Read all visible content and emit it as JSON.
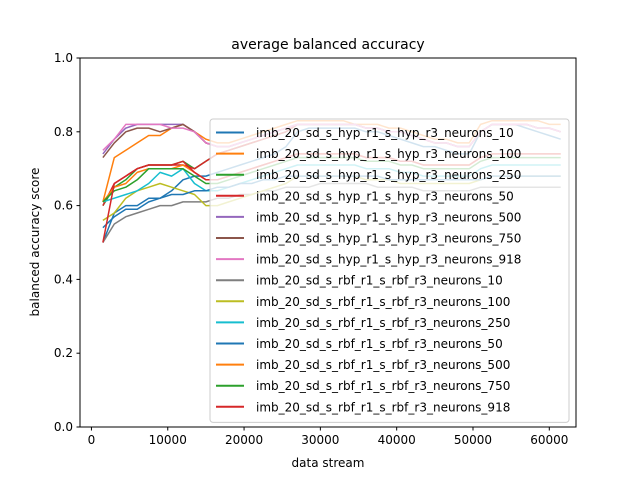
{
  "chart_data": {
    "type": "line",
    "title": "average balanced accuracy",
    "xlabel": "data stream",
    "ylabel": "balanced accuracy score",
    "xlim": [
      -1500,
      63500
    ],
    "ylim": [
      0.0,
      1.0
    ],
    "xticks": [
      0,
      10000,
      20000,
      30000,
      40000,
      50000,
      60000
    ],
    "yticks": [
      0.0,
      0.2,
      0.4,
      0.6,
      0.8,
      1.0
    ],
    "xtick_labels": [
      "0",
      "10000",
      "20000",
      "30000",
      "40000",
      "50000",
      "60000"
    ],
    "ytick_labels": [
      "0.0",
      "0.2",
      "0.4",
      "0.6",
      "0.8",
      "1.0"
    ],
    "grid": false,
    "legend_position": "center-right",
    "x": [
      1500,
      3000,
      4500,
      6000,
      7500,
      9000,
      10500,
      12000,
      13500,
      15000,
      16500,
      18000,
      19500,
      21000,
      22500,
      24000,
      25500,
      27000,
      28500,
      30000,
      31500,
      33000,
      34500,
      36000,
      37500,
      39000,
      40500,
      42000,
      43500,
      45000,
      46500,
      48000,
      49500,
      51000,
      52500,
      54000,
      55500,
      57000,
      58500,
      60000,
      61500
    ],
    "series": [
      {
        "name": "imb_20_sd_s_hyp_r1_s_hyp_r3_neurons_10",
        "color": "#1f77b4",
        "values": [
          0.5,
          0.58,
          0.6,
          0.6,
          0.62,
          0.62,
          0.64,
          0.67,
          0.68,
          0.68,
          0.69,
          0.7,
          0.71,
          0.72,
          0.73,
          0.74,
          0.76,
          0.8,
          0.81,
          0.81,
          0.81,
          0.81,
          0.81,
          0.8,
          0.8,
          0.79,
          0.78,
          0.77,
          0.76,
          0.76,
          0.75,
          0.74,
          0.74,
          0.8,
          0.82,
          0.82,
          0.82,
          0.81,
          0.8,
          0.79,
          0.78
        ]
      },
      {
        "name": "imb_20_sd_s_hyp_r1_s_hyp_r3_neurons_100",
        "color": "#ff7f0e",
        "values": [
          0.61,
          0.73,
          0.75,
          0.77,
          0.79,
          0.79,
          0.81,
          0.82,
          0.8,
          0.78,
          0.77,
          0.77,
          0.78,
          0.79,
          0.8,
          0.81,
          0.82,
          0.83,
          0.83,
          0.83,
          0.83,
          0.83,
          0.82,
          0.82,
          0.82,
          0.81,
          0.81,
          0.8,
          0.79,
          0.78,
          0.78,
          0.77,
          0.77,
          0.82,
          0.83,
          0.83,
          0.83,
          0.83,
          0.83,
          0.82,
          0.82
        ]
      },
      {
        "name": "imb_20_sd_s_hyp_r1_s_hyp_r3_neurons_250",
        "color": "#2ca02c",
        "values": [
          0.6,
          0.65,
          0.67,
          0.7,
          0.71,
          0.71,
          0.71,
          0.72,
          0.7,
          0.72,
          0.74,
          0.75,
          0.76,
          0.77,
          0.78,
          0.79,
          0.8,
          0.82,
          0.82,
          0.82,
          0.82,
          0.82,
          0.82,
          0.81,
          0.81,
          0.8,
          0.8,
          0.79,
          0.78,
          0.77,
          0.77,
          0.76,
          0.76,
          0.8,
          0.82,
          0.82,
          0.82,
          0.82,
          0.81,
          0.81,
          0.8
        ]
      },
      {
        "name": "imb_20_sd_s_hyp_r1_s_hyp_r3_neurons_50",
        "color": "#d62728",
        "values": [
          0.6,
          0.66,
          0.68,
          0.7,
          0.71,
          0.71,
          0.71,
          0.71,
          0.7,
          0.72,
          0.74,
          0.75,
          0.76,
          0.77,
          0.78,
          0.79,
          0.8,
          0.82,
          0.82,
          0.82,
          0.82,
          0.82,
          0.82,
          0.81,
          0.81,
          0.8,
          0.8,
          0.79,
          0.78,
          0.77,
          0.77,
          0.76,
          0.76,
          0.8,
          0.82,
          0.82,
          0.82,
          0.82,
          0.81,
          0.81,
          0.8
        ]
      },
      {
        "name": "imb_20_sd_s_hyp_r1_s_hyp_r3_neurons_500",
        "color": "#9467bd",
        "values": [
          0.74,
          0.78,
          0.81,
          0.82,
          0.82,
          0.82,
          0.82,
          0.82,
          0.8,
          0.77,
          0.76,
          0.76,
          0.77,
          0.78,
          0.79,
          0.8,
          0.81,
          0.82,
          0.82,
          0.82,
          0.82,
          0.82,
          0.82,
          0.81,
          0.81,
          0.8,
          0.8,
          0.79,
          0.78,
          0.77,
          0.77,
          0.76,
          0.76,
          0.8,
          0.82,
          0.82,
          0.82,
          0.82,
          0.81,
          0.81,
          0.8
        ]
      },
      {
        "name": "imb_20_sd_s_hyp_r1_s_hyp_r3_neurons_750",
        "color": "#8c564b",
        "values": [
          0.73,
          0.77,
          0.8,
          0.81,
          0.81,
          0.8,
          0.81,
          0.82,
          0.8,
          0.77,
          0.76,
          0.76,
          0.77,
          0.78,
          0.79,
          0.8,
          0.81,
          0.82,
          0.82,
          0.82,
          0.82,
          0.82,
          0.82,
          0.81,
          0.81,
          0.8,
          0.8,
          0.79,
          0.78,
          0.77,
          0.77,
          0.76,
          0.76,
          0.8,
          0.82,
          0.82,
          0.82,
          0.82,
          0.81,
          0.81,
          0.8
        ]
      },
      {
        "name": "imb_20_sd_s_hyp_r1_s_hyp_r3_neurons_918",
        "color": "#e377c2",
        "values": [
          0.75,
          0.78,
          0.82,
          0.82,
          0.82,
          0.82,
          0.81,
          0.81,
          0.8,
          0.77,
          0.76,
          0.76,
          0.77,
          0.78,
          0.79,
          0.8,
          0.81,
          0.82,
          0.82,
          0.82,
          0.82,
          0.82,
          0.82,
          0.81,
          0.81,
          0.8,
          0.8,
          0.79,
          0.78,
          0.77,
          0.77,
          0.76,
          0.76,
          0.8,
          0.82,
          0.82,
          0.82,
          0.82,
          0.81,
          0.81,
          0.8
        ]
      },
      {
        "name": "imb_20_sd_s_rbf_r1_s_rbf_r3_neurons_10",
        "color": "#7f7f7f",
        "values": [
          0.5,
          0.55,
          0.57,
          0.58,
          0.59,
          0.6,
          0.6,
          0.61,
          0.61,
          0.61,
          0.62,
          0.62,
          0.63,
          0.63,
          0.64,
          0.64,
          0.65,
          0.65,
          0.65,
          0.66,
          0.66,
          0.66,
          0.66,
          0.66,
          0.65,
          0.65,
          0.65,
          0.65,
          0.64,
          0.64,
          0.64,
          0.64,
          0.64,
          0.65,
          0.65,
          0.65,
          0.65,
          0.65,
          0.65,
          0.65,
          0.65
        ]
      },
      {
        "name": "imb_20_sd_s_rbf_r1_s_rbf_r3_neurons_100",
        "color": "#bcbd22",
        "values": [
          0.56,
          0.58,
          0.62,
          0.64,
          0.65,
          0.66,
          0.65,
          0.64,
          0.63,
          0.6,
          0.6,
          0.61,
          0.62,
          0.63,
          0.64,
          0.65,
          0.66,
          0.68,
          0.68,
          0.68,
          0.68,
          0.68,
          0.68,
          0.67,
          0.67,
          0.67,
          0.66,
          0.66,
          0.66,
          0.66,
          0.66,
          0.66,
          0.66,
          0.67,
          0.68,
          0.68,
          0.68,
          0.68,
          0.68,
          0.68,
          0.68
        ]
      },
      {
        "name": "imb_20_sd_s_rbf_r1_s_rbf_r3_neurons_250",
        "color": "#17becf",
        "values": [
          0.61,
          0.62,
          0.63,
          0.64,
          0.66,
          0.69,
          0.68,
          0.7,
          0.66,
          0.64,
          0.64,
          0.65,
          0.66,
          0.67,
          0.68,
          0.69,
          0.7,
          0.71,
          0.71,
          0.71,
          0.71,
          0.71,
          0.71,
          0.7,
          0.7,
          0.7,
          0.69,
          0.69,
          0.68,
          0.68,
          0.68,
          0.68,
          0.68,
          0.7,
          0.71,
          0.71,
          0.71,
          0.71,
          0.71,
          0.71,
          0.71
        ]
      },
      {
        "name": "imb_20_sd_s_rbf_r1_s_rbf_r3_neurons_50",
        "color": "#1f77b4",
        "values": [
          0.54,
          0.57,
          0.59,
          0.59,
          0.61,
          0.62,
          0.63,
          0.63,
          0.64,
          0.64,
          0.65,
          0.65,
          0.66,
          0.66,
          0.67,
          0.67,
          0.68,
          0.68,
          0.68,
          0.68,
          0.68,
          0.68,
          0.68,
          0.68,
          0.68,
          0.67,
          0.67,
          0.67,
          0.67,
          0.67,
          0.67,
          0.67,
          0.67,
          0.67,
          0.68,
          0.68,
          0.68,
          0.68,
          0.68,
          0.68,
          0.68
        ]
      },
      {
        "name": "imb_20_sd_s_rbf_r1_s_rbf_r3_neurons_500",
        "color": "#ff7f0e",
        "values": [
          0.61,
          0.65,
          0.66,
          0.69,
          0.7,
          0.7,
          0.7,
          0.71,
          0.69,
          0.67,
          0.67,
          0.68,
          0.69,
          0.7,
          0.71,
          0.72,
          0.73,
          0.74,
          0.74,
          0.74,
          0.74,
          0.74,
          0.74,
          0.73,
          0.73,
          0.73,
          0.72,
          0.72,
          0.71,
          0.71,
          0.71,
          0.71,
          0.71,
          0.73,
          0.74,
          0.74,
          0.74,
          0.74,
          0.74,
          0.74,
          0.74
        ]
      },
      {
        "name": "imb_20_sd_s_rbf_r1_s_rbf_r3_neurons_750",
        "color": "#2ca02c",
        "values": [
          0.61,
          0.64,
          0.65,
          0.67,
          0.7,
          0.7,
          0.7,
          0.7,
          0.68,
          0.66,
          0.66,
          0.67,
          0.68,
          0.69,
          0.7,
          0.71,
          0.72,
          0.73,
          0.73,
          0.73,
          0.73,
          0.73,
          0.73,
          0.72,
          0.72,
          0.72,
          0.71,
          0.71,
          0.7,
          0.7,
          0.7,
          0.7,
          0.7,
          0.72,
          0.73,
          0.73,
          0.73,
          0.73,
          0.73,
          0.73,
          0.73
        ]
      },
      {
        "name": "imb_20_sd_s_rbf_r1_s_rbf_r3_neurons_918",
        "color": "#d62728",
        "values": [
          0.5,
          0.66,
          0.68,
          0.7,
          0.71,
          0.71,
          0.71,
          0.72,
          0.69,
          0.67,
          0.67,
          0.68,
          0.69,
          0.7,
          0.71,
          0.72,
          0.73,
          0.74,
          0.74,
          0.74,
          0.74,
          0.74,
          0.74,
          0.73,
          0.73,
          0.73,
          0.72,
          0.72,
          0.71,
          0.71,
          0.71,
          0.71,
          0.71,
          0.73,
          0.74,
          0.74,
          0.74,
          0.74,
          0.74,
          0.74,
          0.74
        ]
      }
    ]
  }
}
